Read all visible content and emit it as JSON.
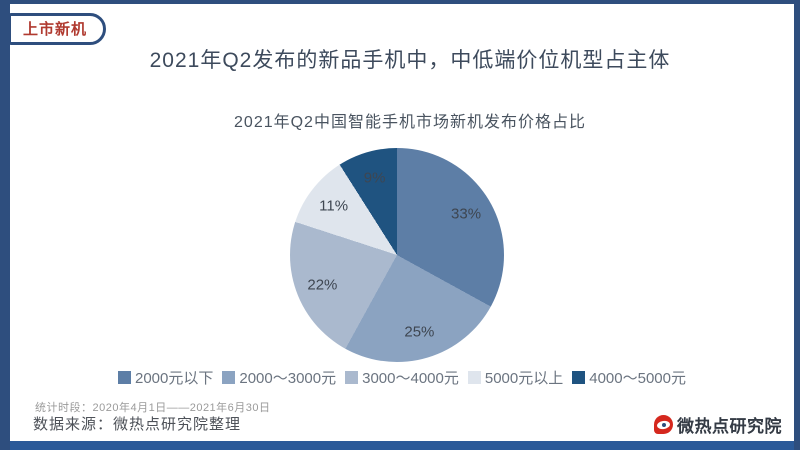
{
  "page": {
    "badge_label": "上市新机",
    "main_title": "2021年Q2发布的新品手机中，中低端价位机型占主体",
    "footer": {
      "stat_period": "统计时段：2020年4月1日——2021年6月30日",
      "data_source": "数据来源：微热点研究院整理",
      "logo_text": "微热点研究院"
    },
    "colors": {
      "frame_navy": "#2e4e7e",
      "bottom_bar_blue": "#2b5a99",
      "badge_text_red": "#b03a30",
      "logo_red": "#d5281e"
    }
  },
  "chart_data": {
    "type": "pie",
    "title": "2021年Q2中国智能手机市场新机发布价格占比",
    "slices": [
      {
        "label": "2000元以下",
        "value": 33,
        "color": "#5d7ea6"
      },
      {
        "label": "2000～3000元",
        "value": 25,
        "color": "#8ba3c1"
      },
      {
        "label": "3000～4000元",
        "value": 22,
        "color": "#aab9ce"
      },
      {
        "label": "5000元以上",
        "value": 11,
        "color": "#dfe5ed"
      },
      {
        "label": "4000～5000元",
        "value": 9,
        "color": "#1f5380"
      }
    ],
    "start_angle_deg": 0,
    "direction": "clockwise",
    "label_format": "percent",
    "legend_position": "bottom"
  }
}
